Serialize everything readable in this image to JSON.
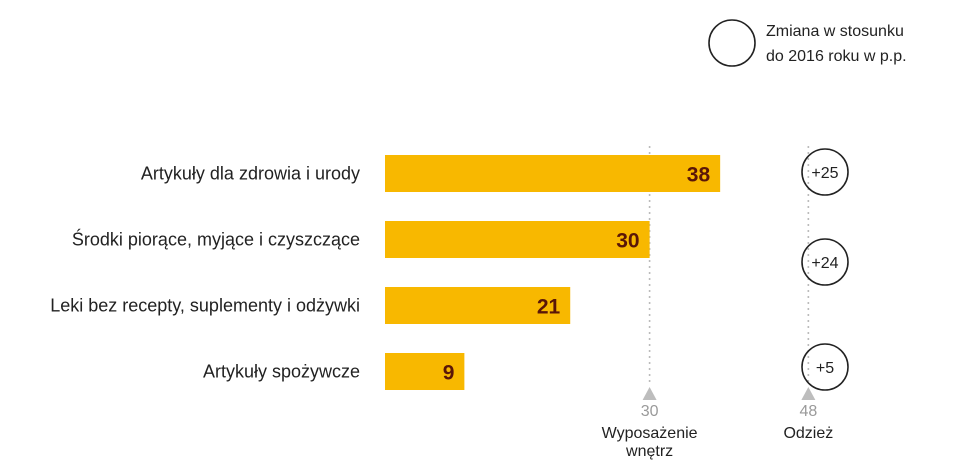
{
  "legend": {
    "lines": [
      "Zmiana w stosunku",
      "do 2016 roku w p.p."
    ]
  },
  "colors": {
    "bar": "#F8B800",
    "value_text": "#5A1608",
    "reference_line": "#BBBBBB",
    "reference_marker": "#BDBDBD"
  },
  "chart_data": {
    "type": "bar",
    "orientation": "horizontal",
    "categories": [
      "Artykuły dla zdrowia i urody",
      "Środki piorące, myjące i czyszczące",
      "Leki bez recepty, suplementy i odżywki",
      "Artykuły spożywcze"
    ],
    "values": [
      38,
      30,
      21,
      9
    ],
    "change_vs_2016_pp": [
      "+25",
      "+24",
      null,
      "+5"
    ],
    "reference_lines": [
      {
        "value": 30,
        "label": "30",
        "name": [
          "Wyposażenie",
          "wnętrz"
        ]
      },
      {
        "value": 48,
        "label": "48",
        "name": [
          "Odzież"
        ]
      }
    ],
    "xlim": [
      0,
      48
    ],
    "grid": false,
    "legend_position": "top-right"
  }
}
